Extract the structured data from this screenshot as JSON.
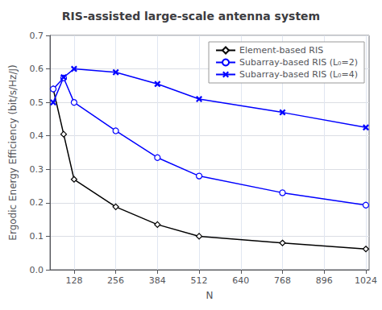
{
  "chart_data": {
    "type": "line",
    "title": "RIS-assisted large-scale antenna system",
    "xlabel": "N",
    "ylabel": "Ergodic Energy Efficiency (bit/s/Hz/J)",
    "x": [
      64,
      96,
      128,
      256,
      384,
      512,
      768,
      1024
    ],
    "series": [
      {
        "name": "Element-based RIS",
        "color": "black",
        "marker": "diamond",
        "line_style": "solid",
        "values": [
          0.54,
          0.405,
          0.27,
          0.188,
          0.135,
          0.1,
          0.08,
          0.062
        ]
      },
      {
        "name": "Subarray-based RIS (L₀=2)",
        "color": "blue",
        "marker": "circle",
        "line_style": "solid",
        "values": [
          0.54,
          0.573,
          0.5,
          0.415,
          0.335,
          0.28,
          0.23,
          0.193
        ]
      },
      {
        "name": "Subarray-based RIS (L₀=4)",
        "color": "blue",
        "marker": "x",
        "line_style": "solid",
        "values": [
          0.5,
          0.575,
          0.6,
          0.59,
          0.555,
          0.51,
          0.47,
          0.425
        ]
      }
    ],
    "xlim": [
      54,
      1034
    ],
    "xticks": [
      128,
      256,
      384,
      512,
      640,
      768,
      896,
      1024
    ],
    "ylim": [
      0,
      0.7
    ],
    "yticks": [
      {
        "value": 0.0,
        "label": "0.0"
      },
      0.1,
      0.2,
      0.3,
      0.4,
      0.5,
      0.6,
      0.7
    ],
    "grid": true,
    "legend": "upper right"
  }
}
